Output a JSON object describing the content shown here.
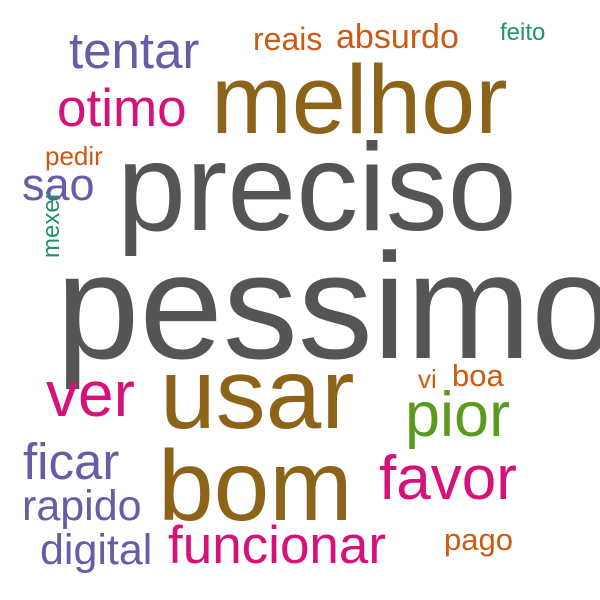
{
  "colors": {
    "gray": "#555555",
    "brown": "#8c6419",
    "magenta": "#d6127a",
    "purple": "#6a5aa8",
    "orange": "#cc5a12",
    "green": "#5a9a1f",
    "teal": "#21916f",
    "background": "#ffffff"
  },
  "words": {
    "pessimo": "pessimo",
    "preciso": "preciso",
    "melhor": "melhor",
    "bom": "bom",
    "usar": "usar",
    "funcionar": "funcionar",
    "favor": "favor",
    "pior": "pior",
    "ver": "ver",
    "otimo": "otimo",
    "tentar": "tentar",
    "ficar": "ficar",
    "rapido": "rapido",
    "digital": "digital",
    "sao": "sao",
    "reais": "reais",
    "absurdo": "absurdo",
    "feito": "feito",
    "pedir": "pedir",
    "vi": "vi",
    "boa": "boa",
    "pago": "pago",
    "mexer": "mexer"
  }
}
